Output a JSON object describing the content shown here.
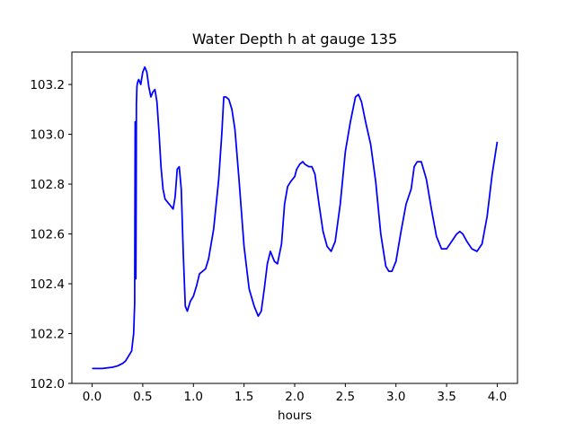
{
  "chart_data": {
    "type": "line",
    "title": "Water Depth h at gauge 135",
    "xlabel": "hours",
    "ylabel": "",
    "xlim": [
      -0.2,
      4.2
    ],
    "ylim": [
      102.0,
      103.33
    ],
    "xticks": [
      0.0,
      0.5,
      1.0,
      1.5,
      2.0,
      2.5,
      3.0,
      3.5,
      4.0
    ],
    "xtick_labels": [
      "0.0",
      "0.5",
      "1.0",
      "1.5",
      "2.0",
      "2.5",
      "3.0",
      "3.5",
      "4.0"
    ],
    "yticks": [
      102.0,
      102.2,
      102.4,
      102.6,
      102.8,
      103.0,
      103.2
    ],
    "ytick_labels": [
      "102.0",
      "102.2",
      "102.4",
      "102.6",
      "102.8",
      "103.0",
      "103.2"
    ],
    "grid": false,
    "line_color": "#0000ff",
    "series": [
      {
        "x": [
          0.0,
          0.1,
          0.2,
          0.25,
          0.3,
          0.33,
          0.36,
          0.39,
          0.41,
          0.42,
          0.425,
          0.43,
          0.432,
          0.435,
          0.437,
          0.44,
          0.442,
          0.445,
          0.45,
          0.46,
          0.48,
          0.5,
          0.52,
          0.54,
          0.56,
          0.58,
          0.6,
          0.62,
          0.64,
          0.66,
          0.68,
          0.7,
          0.72,
          0.74,
          0.76,
          0.8,
          0.82,
          0.84,
          0.86,
          0.88,
          0.9,
          0.92,
          0.94,
          0.97,
          1.0,
          1.03,
          1.06,
          1.09,
          1.12,
          1.15,
          1.2,
          1.25,
          1.28,
          1.3,
          1.32,
          1.35,
          1.38,
          1.41,
          1.45,
          1.5,
          1.55,
          1.6,
          1.64,
          1.67,
          1.7,
          1.73,
          1.76,
          1.8,
          1.83,
          1.87,
          1.9,
          1.93,
          1.96,
          2.0,
          2.02,
          2.05,
          2.08,
          2.1,
          2.14,
          2.17,
          2.2,
          2.24,
          2.28,
          2.32,
          2.36,
          2.4,
          2.45,
          2.5,
          2.55,
          2.6,
          2.63,
          2.66,
          2.7,
          2.75,
          2.8,
          2.85,
          2.9,
          2.93,
          2.96,
          3.0,
          3.05,
          3.1,
          3.15,
          3.18,
          3.21,
          3.25,
          3.3,
          3.35,
          3.4,
          3.45,
          3.5,
          3.55,
          3.6,
          3.63,
          3.66,
          3.7,
          3.75,
          3.8,
          3.85,
          3.9,
          3.95,
          4.0
        ],
        "y": [
          102.06,
          102.06,
          102.065,
          102.07,
          102.08,
          102.09,
          102.11,
          102.13,
          102.2,
          102.32,
          103.05,
          102.75,
          102.42,
          102.75,
          103.12,
          103.16,
          103.19,
          103.2,
          103.21,
          103.22,
          103.2,
          103.25,
          103.27,
          103.25,
          103.19,
          103.15,
          103.17,
          103.18,
          103.13,
          103.01,
          102.87,
          102.78,
          102.74,
          102.73,
          102.72,
          102.7,
          102.75,
          102.86,
          102.87,
          102.78,
          102.52,
          102.31,
          102.29,
          102.33,
          102.35,
          102.39,
          102.44,
          102.45,
          102.46,
          102.5,
          102.62,
          102.82,
          103.0,
          103.15,
          103.15,
          103.14,
          103.1,
          103.02,
          102.82,
          102.55,
          102.38,
          102.31,
          102.27,
          102.29,
          102.38,
          102.48,
          102.53,
          102.49,
          102.48,
          102.56,
          102.72,
          102.79,
          102.81,
          102.83,
          102.86,
          102.88,
          102.89,
          102.88,
          102.87,
          102.87,
          102.84,
          102.72,
          102.61,
          102.55,
          102.53,
          102.57,
          102.72,
          102.93,
          103.05,
          103.15,
          103.16,
          103.13,
          103.05,
          102.96,
          102.81,
          102.6,
          102.47,
          102.45,
          102.45,
          102.49,
          102.61,
          102.72,
          102.78,
          102.87,
          102.89,
          102.89,
          102.82,
          102.7,
          102.59,
          102.54,
          102.54,
          102.57,
          102.6,
          102.61,
          102.6,
          102.57,
          102.54,
          102.53,
          102.56,
          102.67,
          102.84,
          102.97
        ]
      }
    ]
  }
}
